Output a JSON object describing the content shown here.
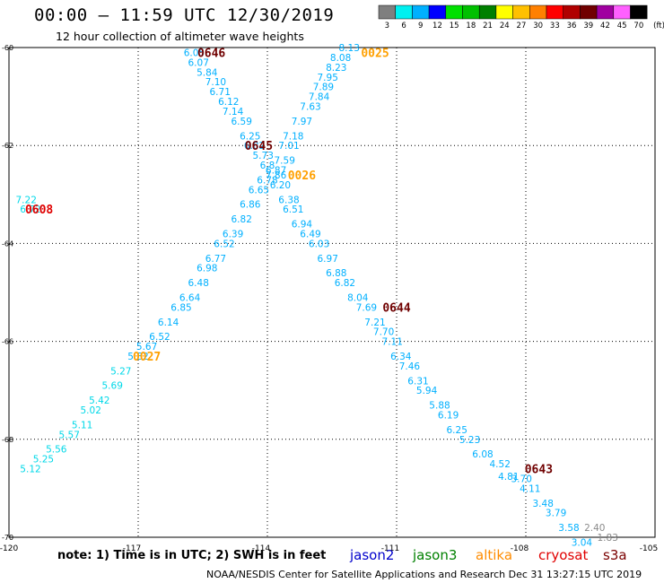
{
  "header": {
    "title": "00:00 – 11:59 UTC 12/30/2019",
    "subtitle": "12 hour collection of altimeter wave heights"
  },
  "colorbar": {
    "labels": [
      "3",
      "6",
      "9",
      "12",
      "15",
      "18",
      "21",
      "24",
      "27",
      "30",
      "33",
      "36",
      "39",
      "42",
      "45",
      "70",
      "(ft)"
    ],
    "colors": [
      "#7f7f7f",
      "#00f0f0",
      "#00b0ff",
      "#0000ff",
      "#00e000",
      "#00c000",
      "#008000",
      "#ffff00",
      "#ffc000",
      "#ff8000",
      "#ff0000",
      "#b00000",
      "#700000",
      "#a000a0",
      "#ff60ff",
      "#000000"
    ]
  },
  "footer": {
    "note": "note: 1) Time is in UTC; 2) SWH is in feet",
    "credit": "NOAA/NESDIS Center for Satellite Applications and Research     Dec 31 13:27:15 UTC 2019"
  },
  "legend": [
    {
      "name": "jason2",
      "color": "#0000cc"
    },
    {
      "name": "jason3",
      "color": "#008000"
    },
    {
      "name": "altika",
      "color": "#ff8c00"
    },
    {
      "name": "cryosat",
      "color": "#e00000"
    },
    {
      "name": "s3a",
      "color": "#7a0000"
    }
  ],
  "chart_data": {
    "type": "scatter",
    "title": "00:00 – 11:59 UTC 12/30/2019",
    "subtitle": "12 hour collection of altimeter wave heights",
    "xlim": [
      -120,
      -105
    ],
    "ylim": [
      -70,
      -60
    ],
    "xticks": [
      "-120",
      "-117",
      "-114",
      "-111",
      "-108",
      "-105"
    ],
    "yticks": [
      "-60",
      "-62",
      "-64",
      "-66",
      "-68",
      "-70"
    ],
    "grid": true,
    "time_labels": [
      {
        "text": "0646",
        "x": -115.3,
        "y": -60.1,
        "color": "#700000"
      },
      {
        "text": "0025",
        "x": -111.5,
        "y": -60.1,
        "color": "#ffa000"
      },
      {
        "text": "0645",
        "x": -114.2,
        "y": -62.0,
        "color": "#700000"
      },
      {
        "text": "0026",
        "x": -113.2,
        "y": -62.6,
        "color": "#ffa000"
      },
      {
        "text": "0608",
        "x": -119.3,
        "y": -63.3,
        "color": "#e00000"
      },
      {
        "text": "0644",
        "x": -111.0,
        "y": -65.3,
        "color": "#700000"
      },
      {
        "text": "0027",
        "x": -116.8,
        "y": -66.3,
        "color": "#ffa000"
      },
      {
        "text": "0643",
        "x": -107.7,
        "y": -68.6,
        "color": "#700000"
      }
    ],
    "series": [
      {
        "color": "#00b0ff",
        "points": [
          {
            "x": -115.7,
            "y": -60.1,
            "v": "6.05"
          },
          {
            "x": -115.6,
            "y": -60.3,
            "v": "6.07"
          },
          {
            "x": -115.4,
            "y": -60.5,
            "v": "5.84"
          },
          {
            "x": -115.2,
            "y": -60.7,
            "v": "7.10"
          },
          {
            "x": -115.1,
            "y": -60.9,
            "v": "6.71"
          },
          {
            "x": -114.9,
            "y": -61.1,
            "v": "6.12"
          },
          {
            "x": -114.8,
            "y": -61.3,
            "v": "7.14"
          },
          {
            "x": -114.6,
            "y": -61.5,
            "v": "6.59"
          },
          {
            "x": -114.4,
            "y": -61.8,
            "v": "6.25"
          },
          {
            "x": -114.3,
            "y": -62.0,
            "v": "6.82"
          },
          {
            "x": -114.1,
            "y": -62.2,
            "v": "5.73"
          },
          {
            "x": -114.0,
            "y": -62.4,
            "v": "6.8"
          },
          {
            "x": -113.8,
            "y": -62.6,
            "v": "7.86"
          },
          {
            "x": -113.7,
            "y": -62.8,
            "v": "6.20"
          },
          {
            "x": -113.5,
            "y": -63.1,
            "v": "6.38"
          },
          {
            "x": -113.4,
            "y": -63.3,
            "v": "6.51"
          },
          {
            "x": -113.2,
            "y": -63.6,
            "v": "6.94"
          },
          {
            "x": -113.0,
            "y": -63.8,
            "v": "6.49"
          },
          {
            "x": -112.8,
            "y": -64.0,
            "v": "6.03"
          },
          {
            "x": -112.6,
            "y": -64.3,
            "v": "6.97"
          },
          {
            "x": -112.4,
            "y": -64.6,
            "v": "6.88"
          },
          {
            "x": -112.2,
            "y": -64.8,
            "v": "6.82"
          },
          {
            "x": -111.9,
            "y": -65.1,
            "v": "8.04"
          },
          {
            "x": -111.7,
            "y": -65.3,
            "v": "7.69"
          },
          {
            "x": -111.5,
            "y": -65.6,
            "v": "7.21"
          },
          {
            "x": -111.3,
            "y": -65.8,
            "v": "7.70"
          },
          {
            "x": -111.1,
            "y": -66.0,
            "v": "7.11"
          },
          {
            "x": -110.9,
            "y": -66.3,
            "v": "6.34"
          },
          {
            "x": -110.7,
            "y": -66.5,
            "v": "7.46"
          },
          {
            "x": -110.5,
            "y": -66.8,
            "v": "6.31"
          },
          {
            "x": -110.3,
            "y": -67.0,
            "v": "5.94"
          },
          {
            "x": -110.0,
            "y": -67.3,
            "v": "5.88"
          },
          {
            "x": -109.8,
            "y": -67.5,
            "v": "6.19"
          },
          {
            "x": -109.6,
            "y": -67.8,
            "v": "6.25"
          },
          {
            "x": -109.3,
            "y": -68.0,
            "v": "5.23"
          },
          {
            "x": -109.0,
            "y": -68.3,
            "v": "6.08"
          },
          {
            "x": -108.6,
            "y": -68.5,
            "v": "4.52"
          },
          {
            "x": -108.4,
            "y": -68.75,
            "v": "4.81"
          },
          {
            "x": -108.1,
            "y": -68.8,
            "v": "3.70"
          },
          {
            "x": -107.9,
            "y": -69.0,
            "v": "4.11"
          },
          {
            "x": -107.6,
            "y": -69.3,
            "v": "3.48"
          },
          {
            "x": -107.3,
            "y": -69.5,
            "v": "3.79"
          },
          {
            "x": -107.0,
            "y": -69.8,
            "v": "3.58"
          },
          {
            "x": -106.7,
            "y": -70.1,
            "v": "3.04"
          }
        ]
      },
      {
        "color": "#00b0ff",
        "points": [
          {
            "x": -112.1,
            "y": -60.0,
            "v": "8.13"
          },
          {
            "x": -112.3,
            "y": -60.2,
            "v": "8.08"
          },
          {
            "x": -112.4,
            "y": -60.4,
            "v": "8.23"
          },
          {
            "x": -112.6,
            "y": -60.6,
            "v": "7.95"
          },
          {
            "x": -112.7,
            "y": -60.8,
            "v": "7.89"
          },
          {
            "x": -112.8,
            "y": -61.0,
            "v": "7.84"
          },
          {
            "x": -113.0,
            "y": -61.2,
            "v": "7.63"
          },
          {
            "x": -113.2,
            "y": -61.5,
            "v": "7.97"
          },
          {
            "x": -113.4,
            "y": -61.8,
            "v": "7.18"
          },
          {
            "x": -113.5,
            "y": -62.0,
            "v": "7.01"
          },
          {
            "x": -113.6,
            "y": -62.3,
            "v": "7.59"
          },
          {
            "x": -113.8,
            "y": -62.5,
            "v": "6.87"
          },
          {
            "x": -114.0,
            "y": -62.7,
            "v": "6.78"
          },
          {
            "x": -114.2,
            "y": -62.9,
            "v": "6.65"
          },
          {
            "x": -114.4,
            "y": -63.2,
            "v": "6.86"
          },
          {
            "x": -114.6,
            "y": -63.5,
            "v": "6.82"
          },
          {
            "x": -114.8,
            "y": -63.8,
            "v": "6.39"
          },
          {
            "x": -115.0,
            "y": -64.0,
            "v": "6.52"
          },
          {
            "x": -115.2,
            "y": -64.3,
            "v": "6.77"
          },
          {
            "x": -115.4,
            "y": -64.5,
            "v": "6.98"
          },
          {
            "x": -115.6,
            "y": -64.8,
            "v": "6.48"
          },
          {
            "x": -115.8,
            "y": -65.1,
            "v": "6.64"
          },
          {
            "x": -116.0,
            "y": -65.3,
            "v": "6.85"
          },
          {
            "x": -116.3,
            "y": -65.6,
            "v": "6.14"
          },
          {
            "x": -116.5,
            "y": -65.9,
            "v": "6.52"
          },
          {
            "x": -116.8,
            "y": -66.1,
            "v": "5.67"
          },
          {
            "x": -117.0,
            "y": -66.3,
            "v": "5.82"
          }
        ]
      },
      {
        "color": "#00d8e8",
        "points": [
          {
            "x": -117.4,
            "y": -66.6,
            "v": "5.27"
          },
          {
            "x": -117.6,
            "y": -66.9,
            "v": "5.69"
          },
          {
            "x": -117.9,
            "y": -67.2,
            "v": "5.42"
          },
          {
            "x": -118.1,
            "y": -67.4,
            "v": "5.02"
          },
          {
            "x": -118.3,
            "y": -67.7,
            "v": "5.11"
          },
          {
            "x": -118.6,
            "y": -67.9,
            "v": "5.57"
          },
          {
            "x": -118.9,
            "y": -68.2,
            "v": "5.56"
          },
          {
            "x": -119.2,
            "y": -68.4,
            "v": "5.25"
          },
          {
            "x": -119.5,
            "y": -68.6,
            "v": "5.12"
          }
        ]
      },
      {
        "color": "#00d8e8",
        "points": [
          {
            "x": -119.6,
            "y": -63.1,
            "v": "7.22"
          },
          {
            "x": -119.5,
            "y": -63.3,
            "v": "6.72"
          }
        ]
      },
      {
        "color": "#8a8a8a",
        "points": [
          {
            "x": -106.4,
            "y": -69.8,
            "v": "2.40"
          },
          {
            "x": -106.1,
            "y": -70.0,
            "v": "1.83"
          }
        ]
      }
    ]
  }
}
